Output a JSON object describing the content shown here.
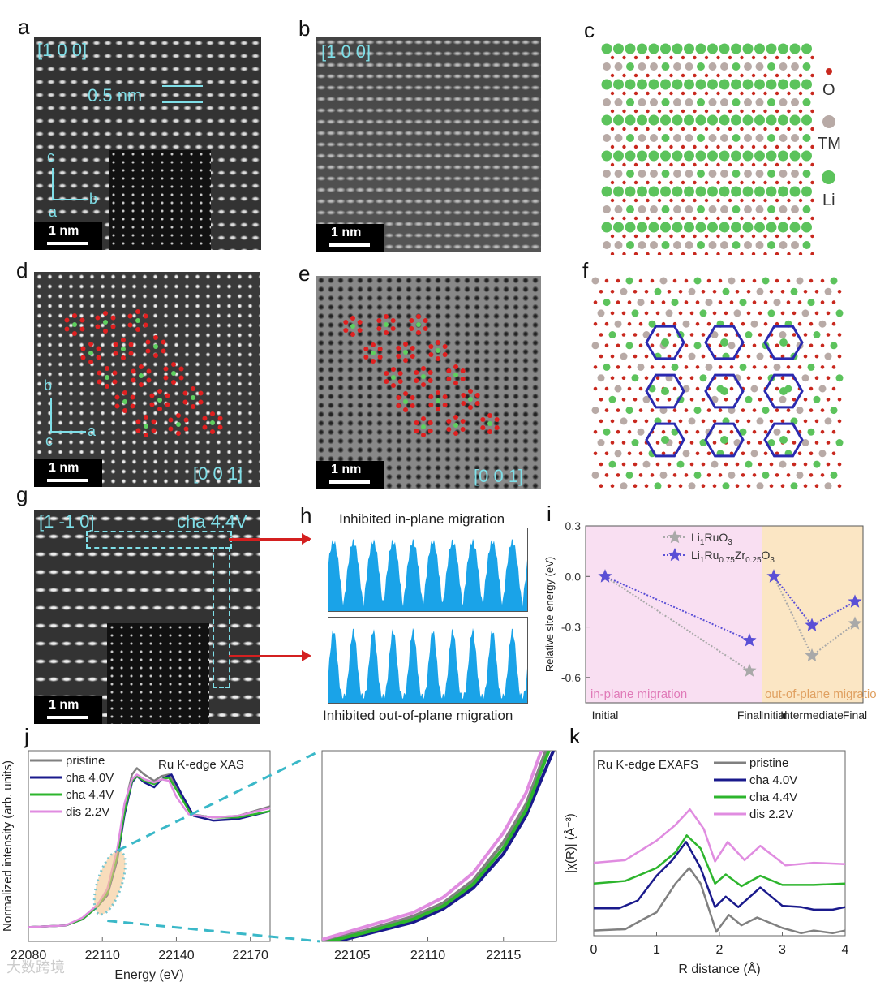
{
  "panels": {
    "a": "a",
    "b": "b",
    "c": "c",
    "d": "d",
    "e": "e",
    "f": "f",
    "g": "g",
    "h": "h",
    "i": "i",
    "j": "j",
    "k": "k"
  },
  "a": {
    "zone": "[1 0 0]",
    "spacing": "0.5 nm",
    "axis_c": "c",
    "axis_b": "b",
    "axis_a": "a",
    "scale": "1 nm"
  },
  "b": {
    "zone": "[1 0 0]",
    "scale": "1 nm"
  },
  "c": {
    "legend": [
      {
        "label": "O",
        "color": "#c8281e"
      },
      {
        "label": "TM",
        "color": "#b8aaa6"
      },
      {
        "label": "Li",
        "color": "#5cc35c"
      }
    ]
  },
  "d": {
    "zone": "[0 0 1]",
    "axis_b": "b",
    "axis_c": "c",
    "axis_a": "a",
    "scale": "1 nm"
  },
  "e": {
    "zone": "[0 0 1]",
    "scale": "1 nm"
  },
  "g": {
    "zone": "[1 -1 0]",
    "state": "cha 4.4V",
    "scale": "1 nm"
  },
  "h": {
    "top_title": "Inhibited in-plane migration",
    "bottom_title": "Inhibited out-of-plane migration",
    "fill_color": "#1aa3e8"
  },
  "watermark": "大数跨境",
  "chart_data": [
    {
      "id": "i",
      "type": "line",
      "ylabel": "Relative site energy (eV)",
      "ylim": [
        -0.75,
        0.3
      ],
      "yticks": [
        "0.3",
        "0.0",
        "-0.3",
        "-0.6"
      ],
      "ytick_values": [
        0.3,
        0,
        -0.3,
        -0.6
      ],
      "regions": [
        {
          "label": "in-plane migration",
          "color": "#f9dff2",
          "text_color": "#e07ab8"
        },
        {
          "label": "out-of-plane migration",
          "color": "#fbe6c4",
          "text_color": "#e0a060"
        }
      ],
      "xlabels": [
        "Initial",
        "Final",
        "Initial",
        "Intermediate",
        "Final"
      ],
      "series": [
        {
          "name": "Li1RuO3",
          "color": "#a9a9a9",
          "groups": [
            [
              0,
              -0.56
            ],
            [
              0,
              -0.47,
              -0.28
            ]
          ]
        },
        {
          "name": "Li1Ru0.75Zr0.25O3",
          "color": "#5a4fd6",
          "groups": [
            [
              0,
              -0.38
            ],
            [
              0,
              -0.29,
              -0.15
            ]
          ]
        }
      ],
      "legend": [
        {
          "base": "Li",
          "s1": "1",
          "b2": "RuO",
          "s2": "3"
        },
        {
          "base": "Li",
          "s1": "1",
          "b2": "Ru",
          "s2": "0.75",
          "b3": "Zr",
          "s3": "0.25",
          "b4": "O",
          "s4": "3"
        }
      ]
    },
    {
      "id": "j",
      "type": "line",
      "title": "Ru K-edge XAS",
      "xlabel": "Energy (eV)",
      "ylabel": "Normalized intensity (arb. units)",
      "xlim": [
        22080,
        22178
      ],
      "ylim": [
        -0.05,
        1.15
      ],
      "xticks": [
        22080,
        22110,
        22140,
        22170
      ],
      "series": [
        {
          "name": "pristine",
          "color": "#808080",
          "points": [
            [
              22080,
              0.04
            ],
            [
              22095,
              0.05
            ],
            [
              22102,
              0.09
            ],
            [
              22108,
              0.17
            ],
            [
              22112,
              0.26
            ],
            [
              22116,
              0.5
            ],
            [
              22119,
              0.8
            ],
            [
              22122,
              1.0
            ],
            [
              22124,
              1.04
            ],
            [
              22127,
              1.0
            ],
            [
              22131,
              0.96
            ],
            [
              22134,
              0.99
            ],
            [
              22137,
              1.0
            ],
            [
              22141,
              0.9
            ],
            [
              22146,
              0.75
            ],
            [
              22155,
              0.73
            ],
            [
              22165,
              0.74
            ],
            [
              22178,
              0.8
            ]
          ]
        },
        {
          "name": "cha 4.0V",
          "color": "#1a1a8c",
          "points": [
            [
              22080,
              0.04
            ],
            [
              22095,
              0.05
            ],
            [
              22102,
              0.09
            ],
            [
              22108,
              0.17
            ],
            [
              22112,
              0.24
            ],
            [
              22116,
              0.46
            ],
            [
              22119,
              0.75
            ],
            [
              22122,
              0.95
            ],
            [
              22124,
              0.99
            ],
            [
              22127,
              0.95
            ],
            [
              22131,
              0.92
            ],
            [
              22134,
              0.97
            ],
            [
              22138,
              1.0
            ],
            [
              22142,
              0.88
            ],
            [
              22147,
              0.74
            ],
            [
              22155,
              0.71
            ],
            [
              22165,
              0.72
            ],
            [
              22178,
              0.77
            ]
          ]
        },
        {
          "name": "cha 4.4V",
          "color": "#2db52d",
          "points": [
            [
              22080,
              0.04
            ],
            [
              22095,
              0.05
            ],
            [
              22102,
              0.09
            ],
            [
              22108,
              0.17
            ],
            [
              22112,
              0.25
            ],
            [
              22116,
              0.48
            ],
            [
              22119,
              0.77
            ],
            [
              22122,
              0.96
            ],
            [
              22124,
              0.99
            ],
            [
              22127,
              0.96
            ],
            [
              22131,
              0.94
            ],
            [
              22134,
              0.97
            ],
            [
              22137,
              0.98
            ],
            [
              22141,
              0.88
            ],
            [
              22146,
              0.75
            ],
            [
              22155,
              0.73
            ],
            [
              22165,
              0.73
            ],
            [
              22178,
              0.77
            ]
          ]
        },
        {
          "name": "dis 2.2V",
          "color": "#e08ce0",
          "points": [
            [
              22080,
              0.04
            ],
            [
              22095,
              0.05
            ],
            [
              22102,
              0.1
            ],
            [
              22108,
              0.18
            ],
            [
              22112,
              0.28
            ],
            [
              22116,
              0.53
            ],
            [
              22119,
              0.82
            ],
            [
              22122,
              0.97
            ],
            [
              22124,
              1.0
            ],
            [
              22127,
              0.97
            ],
            [
              22131,
              0.95
            ],
            [
              22134,
              0.97
            ],
            [
              22137,
              0.96
            ],
            [
              22140,
              0.86
            ],
            [
              22145,
              0.75
            ],
            [
              22155,
              0.73
            ],
            [
              22165,
              0.74
            ],
            [
              22178,
              0.79
            ]
          ]
        }
      ]
    },
    {
      "id": "j-inset",
      "type": "line",
      "xlim": [
        22103,
        22118.5
      ],
      "ylim": [
        0,
        1
      ],
      "xticks": [
        22105,
        22110,
        22115
      ],
      "series": [
        {
          "name": "pristine",
          "color": "#808080",
          "points": [
            [
              22103,
              0.0
            ],
            [
              22106,
              0.06
            ],
            [
              22109,
              0.13
            ],
            [
              22111,
              0.2
            ],
            [
              22113,
              0.32
            ],
            [
              22115,
              0.52
            ],
            [
              22116.5,
              0.72
            ],
            [
              22117.8,
              1.0
            ]
          ]
        },
        {
          "name": "cha 4.0V",
          "color": "#1a1a8c",
          "points": [
            [
              22103,
              -0.02
            ],
            [
              22106,
              0.04
            ],
            [
              22109,
              0.1
            ],
            [
              22111,
              0.17
            ],
            [
              22113,
              0.28
            ],
            [
              22115,
              0.46
            ],
            [
              22116.5,
              0.66
            ],
            [
              22118.3,
              1.0
            ]
          ]
        },
        {
          "name": "cha 4.4V",
          "color": "#2db52d",
          "points": [
            [
              22103,
              -0.01
            ],
            [
              22106,
              0.05
            ],
            [
              22109,
              0.115
            ],
            [
              22111,
              0.185
            ],
            [
              22113,
              0.3
            ],
            [
              22115,
              0.49
            ],
            [
              22116.5,
              0.69
            ],
            [
              22118,
              1.0
            ]
          ]
        },
        {
          "name": "dis 2.2V",
          "color": "#e08ce0",
          "points": [
            [
              22103,
              0.01
            ],
            [
              22106,
              0.08
            ],
            [
              22109,
              0.15
            ],
            [
              22111,
              0.23
            ],
            [
              22113,
              0.36
            ],
            [
              22115,
              0.57
            ],
            [
              22116.5,
              0.78
            ],
            [
              22117.5,
              1.0
            ]
          ]
        }
      ]
    },
    {
      "id": "k",
      "type": "line",
      "title": "Ru K-edge EXAFS",
      "xlabel": "R distance (Å)",
      "ylabel": "|χ(R)| (Å⁻³)",
      "xlim": [
        0,
        4
      ],
      "ylim": [
        -0.02,
        1.4
      ],
      "xticks": [
        0,
        1,
        2,
        3,
        4
      ],
      "series": [
        {
          "name": "pristine",
          "color": "#808080",
          "points": [
            [
              0,
              0.02
            ],
            [
              0.5,
              0.03
            ],
            [
              0.8,
              0.11
            ],
            [
              1,
              0.16
            ],
            [
              1.3,
              0.38
            ],
            [
              1.52,
              0.5
            ],
            [
              1.7,
              0.38
            ],
            [
              1.95,
              0.01
            ],
            [
              2.15,
              0.14
            ],
            [
              2.35,
              0.06
            ],
            [
              2.6,
              0.12
            ],
            [
              3,
              0.04
            ],
            [
              3.3,
              0.0
            ],
            [
              3.5,
              0.02
            ],
            [
              3.8,
              0.0
            ],
            [
              4,
              0.02
            ]
          ]
        },
        {
          "name": "cha 4.0V",
          "color": "#1a1a8c",
          "points": [
            [
              0,
              0.19
            ],
            [
              0.4,
              0.19
            ],
            [
              0.7,
              0.25
            ],
            [
              1,
              0.44
            ],
            [
              1.25,
              0.56
            ],
            [
              1.47,
              0.7
            ],
            [
              1.7,
              0.5
            ],
            [
              1.93,
              0.2
            ],
            [
              2.1,
              0.28
            ],
            [
              2.3,
              0.2
            ],
            [
              2.65,
              0.35
            ],
            [
              3,
              0.21
            ],
            [
              3.3,
              0.2
            ],
            [
              3.5,
              0.18
            ],
            [
              3.8,
              0.18
            ],
            [
              4,
              0.2
            ]
          ]
        },
        {
          "name": "cha 4.4V",
          "color": "#2db52d",
          "points": [
            [
              0,
              0.38
            ],
            [
              0.5,
              0.4
            ],
            [
              1,
              0.5
            ],
            [
              1.3,
              0.62
            ],
            [
              1.48,
              0.75
            ],
            [
              1.7,
              0.65
            ],
            [
              1.93,
              0.38
            ],
            [
              2.1,
              0.45
            ],
            [
              2.35,
              0.36
            ],
            [
              2.65,
              0.44
            ],
            [
              3,
              0.37
            ],
            [
              3.5,
              0.37
            ],
            [
              4,
              0.38
            ]
          ]
        },
        {
          "name": "dis 2.2V",
          "color": "#e08ce0",
          "points": [
            [
              0,
              0.54
            ],
            [
              0.5,
              0.56
            ],
            [
              1,
              0.71
            ],
            [
              1.3,
              0.83
            ],
            [
              1.53,
              0.95
            ],
            [
              1.75,
              0.8
            ],
            [
              1.93,
              0.55
            ],
            [
              2.13,
              0.7
            ],
            [
              2.4,
              0.56
            ],
            [
              2.65,
              0.67
            ],
            [
              3.05,
              0.52
            ],
            [
              3.5,
              0.54
            ],
            [
              4,
              0.53
            ]
          ]
        }
      ]
    }
  ]
}
